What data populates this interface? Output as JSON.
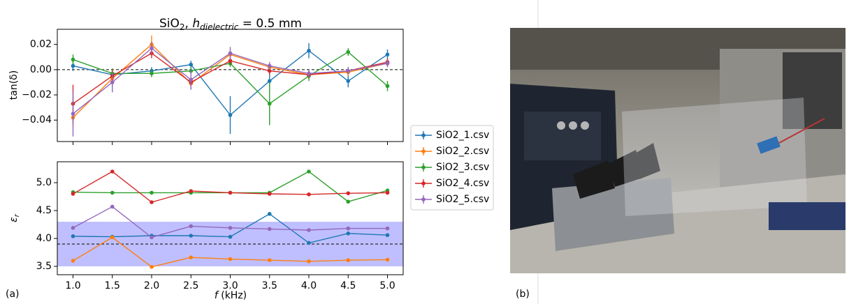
{
  "panels": [
    "(a)",
    "(b)"
  ],
  "chart_data": [
    {
      "type": "line",
      "title": [
        "SiO",
        "2",
        ", ",
        "h",
        "dielectric",
        " = 0.5 mm"
      ],
      "ylabel": "tan(δ)",
      "x": [
        1.0,
        1.5,
        2.0,
        2.5,
        3.0,
        3.5,
        4.0,
        4.5,
        5.0
      ],
      "xlim": [
        0.8,
        5.2
      ],
      "xticks": [
        1.0,
        1.5,
        2.0,
        2.5,
        3.0,
        3.5,
        4.0,
        4.5,
        5.0
      ],
      "ylim": [
        -0.057,
        0.032
      ],
      "yticks": [
        0.02,
        {
          "value": 0,
          "label": "0.00"
        },
        {
          "value": -0.02,
          "label": "−0.02"
        },
        {
          "value": -0.04,
          "label": "−0.04"
        }
      ],
      "hline": 0,
      "series": [
        {
          "name": "SiO2_1.csv",
          "color": "#1f77b4",
          "values": [
            0.003,
            -0.004,
            -0.001,
            0.004,
            -0.036,
            -0.009,
            0.015,
            -0.009,
            0.012
          ],
          "errors": [
            0.004,
            0.003,
            0.003,
            0.003,
            0.015,
            0.007,
            0.006,
            0.005,
            0.004
          ]
        },
        {
          "name": "SiO2_2.csv",
          "color": "#ff7f0e",
          "values": [
            -0.038,
            -0.007,
            0.02,
            -0.011,
            0.012,
            0.002,
            -0.004,
            -0.002,
            0.005
          ],
          "errors": [
            0.007,
            0.005,
            0.007,
            0.004,
            0.003,
            0.003,
            0.003,
            0.003,
            0.003
          ]
        },
        {
          "name": "SiO2_3.csv",
          "color": "#2ca02c",
          "values": [
            0.008,
            -0.003,
            -0.003,
            -0.001,
            0.005,
            -0.027,
            -0.005,
            0.014,
            -0.013
          ],
          "errors": [
            0.004,
            0.004,
            0.003,
            0.003,
            0.003,
            0.017,
            0.004,
            0.003,
            0.004
          ]
        },
        {
          "name": "SiO2_4.csv",
          "color": "#d62728",
          "values": [
            -0.027,
            -0.005,
            0.013,
            -0.01,
            0.007,
            -0.001,
            -0.004,
            -0.001,
            0.006
          ],
          "errors": [
            0.015,
            0.005,
            0.004,
            0.004,
            0.003,
            0.003,
            0.003,
            0.003,
            0.003
          ]
        },
        {
          "name": "SiO2_5.csv",
          "color": "#9467bd",
          "values": [
            -0.035,
            -0.01,
            0.017,
            -0.008,
            0.013,
            0.003,
            -0.003,
            -0.001,
            0.005
          ],
          "errors": [
            0.018,
            0.008,
            0.005,
            0.008,
            0.005,
            0.003,
            0.003,
            0.003,
            0.003
          ]
        }
      ]
    },
    {
      "type": "line",
      "ylabel": [
        "ε",
        "r"
      ],
      "xlabel": [
        "f",
        " (kHz)"
      ],
      "x": [
        1.0,
        1.5,
        2.0,
        2.5,
        3.0,
        3.5,
        4.0,
        4.5,
        5.0
      ],
      "xlim": [
        0.8,
        5.2
      ],
      "xticks": [
        {
          "value": 1,
          "label": "1.0"
        },
        1.5,
        {
          "value": 2,
          "label": "2.0"
        },
        2.5,
        {
          "value": 3,
          "label": "3.0"
        },
        3.5,
        {
          "value": 4,
          "label": "4.0"
        },
        4.5,
        {
          "value": 5,
          "label": "5.0"
        }
      ],
      "ylim": [
        3.35,
        5.375
      ],
      "yticks": [
        3.5,
        {
          "value": 4,
          "label": "4.0"
        },
        4.5,
        {
          "value": 5,
          "label": "5.0"
        }
      ],
      "hline": 3.9,
      "hband": [
        3.5,
        4.3
      ],
      "series": [
        {
          "color": "#1f77b4",
          "values": [
            4.04,
            4.03,
            4.05,
            4.05,
            4.03,
            4.44,
            3.92,
            4.09,
            4.06
          ]
        },
        {
          "color": "#ff7f0e",
          "values": [
            3.6,
            4.02,
            3.49,
            3.66,
            3.63,
            3.61,
            3.59,
            3.61,
            3.62
          ]
        },
        {
          "color": "#2ca02c",
          "values": [
            4.83,
            4.82,
            4.82,
            4.82,
            4.82,
            4.82,
            5.2,
            4.66,
            4.86
          ]
        },
        {
          "color": "#d62728",
          "values": [
            4.8,
            5.2,
            4.65,
            4.85,
            4.82,
            4.8,
            4.79,
            4.81,
            4.82
          ]
        },
        {
          "color": "#9467bd",
          "values": [
            4.19,
            4.57,
            4.02,
            4.22,
            4.19,
            4.17,
            4.15,
            4.18,
            4.18
          ]
        }
      ]
    }
  ]
}
